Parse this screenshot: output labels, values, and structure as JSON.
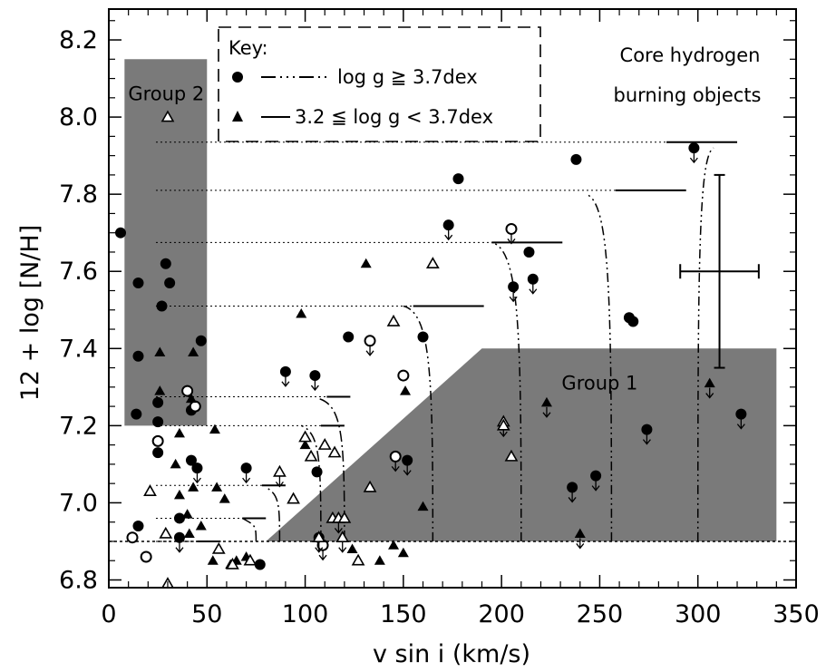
{
  "chart_data": {
    "type": "scatter",
    "xlabel": "v sin i (km/s)",
    "ylabel": "12 + log [N/H]",
    "xlim": [
      0,
      350
    ],
    "ylim": [
      6.78,
      8.28
    ],
    "xticks": [
      0,
      50,
      100,
      150,
      200,
      250,
      300,
      350
    ],
    "yticks": [
      6.8,
      7.0,
      7.2,
      7.4,
      7.6,
      7.8,
      8.0,
      8.2
    ],
    "annotation": [
      "Core hydrogen",
      "burning objects"
    ],
    "regions": [
      {
        "label": "Group 2",
        "polygon": [
          [
            8,
            7.2
          ],
          [
            8,
            8.15
          ],
          [
            50,
            8.15
          ],
          [
            50,
            7.2
          ]
        ]
      },
      {
        "label": "Group 1",
        "polygon": [
          [
            80,
            6.9
          ],
          [
            190,
            7.4
          ],
          [
            340,
            7.4
          ],
          [
            340,
            6.9
          ]
        ]
      }
    ],
    "legend": {
      "title": "Key:",
      "entries": [
        {
          "marker": "circle",
          "line": "dash-dot-dot-dot",
          "label": "log g ≧ 3.7dex"
        },
        {
          "marker": "triangle",
          "line": "solid",
          "label": "3.2 ≦ log g < 3.7dex"
        }
      ]
    },
    "error_bar": {
      "x": 311,
      "y": 7.6,
      "xerr": 20,
      "yerr_low": 0.25,
      "yerr_high": 0.25
    },
    "baseline": 6.9,
    "tracks": [
      {
        "x_end": 191,
        "y": 7.51,
        "y_end": 7.51
      },
      {
        "x_end": 231,
        "y": 7.675,
        "y_end": 7.675
      },
      {
        "x_end": 294,
        "y": 7.81,
        "y_end": 7.81
      },
      {
        "x_end": 320,
        "y": 7.935,
        "y_end": 7.935
      },
      {
        "x_end": 123,
        "y": 7.275,
        "y_end": 7.275
      },
      {
        "x_end": 120,
        "y": 7.2,
        "y_end": 7.2
      },
      {
        "x_end": 90,
        "y": 7.045,
        "y_end": 7.045
      },
      {
        "x_end": 80,
        "y": 6.96,
        "y_end": 6.96
      },
      {
        "x_end": 57,
        "y": 6.9,
        "y_end": 6.9
      }
    ],
    "curves": [
      {
        "x_base": 165,
        "x_top": 150,
        "y_top": 7.51
      },
      {
        "x_base": 210,
        "x_top": 195,
        "y_top": 7.675
      },
      {
        "x_base": 256,
        "x_top": 243,
        "y_top": 7.8
      },
      {
        "x_base": 300,
        "x_top": 308,
        "y_top": 7.92
      },
      {
        "x_base": 120,
        "x_top": 107,
        "y_top": 7.27
      },
      {
        "x_base": 108,
        "x_top": 98,
        "y_top": 7.2
      },
      {
        "x_base": 87,
        "x_top": 80,
        "y_top": 7.04
      },
      {
        "x_base": 75,
        "x_top": 68,
        "y_top": 6.96
      }
    ],
    "series": [
      {
        "marker": "circle-filled",
        "points": [
          [
            6,
            7.7,
            0
          ],
          [
            15,
            7.57,
            0
          ],
          [
            15,
            7.38,
            0
          ],
          [
            14,
            7.23,
            0
          ],
          [
            25,
            7.26,
            0
          ],
          [
            25,
            7.21,
            0
          ],
          [
            25,
            7.13,
            0
          ],
          [
            27,
            7.51,
            0
          ],
          [
            29,
            7.62,
            0
          ],
          [
            31,
            7.57,
            0
          ],
          [
            47,
            7.42,
            0
          ],
          [
            42,
            7.24,
            0
          ],
          [
            42,
            7.11,
            0
          ],
          [
            36,
            6.96,
            0
          ],
          [
            15,
            6.94,
            0
          ],
          [
            45,
            7.09,
            1
          ],
          [
            36,
            6.91,
            1
          ],
          [
            70,
            7.09,
            1
          ],
          [
            77,
            6.84,
            0
          ],
          [
            90,
            7.34,
            1
          ],
          [
            105,
            7.33,
            1
          ],
          [
            106,
            7.08,
            0
          ],
          [
            107,
            6.91,
            0
          ],
          [
            122,
            7.43,
            0
          ],
          [
            152,
            7.11,
            1
          ],
          [
            160,
            7.43,
            0
          ],
          [
            173,
            7.72,
            1
          ],
          [
            178,
            7.84,
            0
          ],
          [
            206,
            7.56,
            1
          ],
          [
            214,
            7.65,
            0
          ],
          [
            216,
            7.58,
            1
          ],
          [
            238,
            7.89,
            0
          ],
          [
            236,
            7.04,
            1
          ],
          [
            248,
            7.07,
            1
          ],
          [
            265,
            7.48,
            0
          ],
          [
            267,
            7.47,
            0
          ],
          [
            274,
            7.19,
            1
          ],
          [
            298,
            7.92,
            1
          ],
          [
            322,
            7.23,
            1
          ]
        ]
      },
      {
        "marker": "circle-open",
        "points": [
          [
            12,
            6.91,
            0
          ],
          [
            19,
            6.86,
            0
          ],
          [
            25,
            7.16,
            0
          ],
          [
            40,
            7.29,
            0
          ],
          [
            44,
            7.25,
            0
          ],
          [
            109,
            6.89,
            1
          ],
          [
            133,
            7.42,
            1
          ],
          [
            146,
            7.12,
            1
          ],
          [
            150,
            7.33,
            0
          ],
          [
            205,
            7.71,
            1
          ]
        ]
      },
      {
        "marker": "triangle-filled",
        "points": [
          [
            26,
            7.39,
            0
          ],
          [
            26,
            7.29,
            0
          ],
          [
            43,
            7.39,
            0
          ],
          [
            42,
            7.27,
            0
          ],
          [
            36,
            7.18,
            0
          ],
          [
            34,
            7.1,
            0
          ],
          [
            36,
            7.02,
            0
          ],
          [
            43,
            7.04,
            0
          ],
          [
            40,
            6.97,
            0
          ],
          [
            47,
            6.94,
            0
          ],
          [
            41,
            6.92,
            0
          ],
          [
            54,
            7.19,
            0
          ],
          [
            55,
            7.04,
            0
          ],
          [
            59,
            7.01,
            0
          ],
          [
            53,
            6.85,
            0
          ],
          [
            62,
            6.84,
            0
          ],
          [
            65,
            6.85,
            0
          ],
          [
            70,
            6.86,
            0
          ],
          [
            98,
            7.49,
            0
          ],
          [
            100,
            7.15,
            0
          ],
          [
            131,
            7.62,
            0
          ],
          [
            151,
            7.29,
            0
          ],
          [
            145,
            6.89,
            0
          ],
          [
            150,
            6.87,
            0
          ],
          [
            160,
            6.99,
            0
          ],
          [
            223,
            7.26,
            1
          ],
          [
            240,
            6.92,
            1
          ],
          [
            306,
            7.31,
            1
          ],
          [
            124,
            6.88,
            0
          ],
          [
            138,
            6.85,
            0
          ]
        ]
      },
      {
        "marker": "triangle-open",
        "points": [
          [
            30,
            8.0,
            0
          ],
          [
            21,
            7.03,
            0
          ],
          [
            29,
            6.92,
            0
          ],
          [
            30,
            6.79,
            0
          ],
          [
            56,
            6.88,
            0
          ],
          [
            63,
            6.84,
            0
          ],
          [
            72,
            6.85,
            0
          ],
          [
            87,
            7.08,
            1
          ],
          [
            94,
            7.01,
            0
          ],
          [
            100,
            7.17,
            0
          ],
          [
            103,
            7.12,
            0
          ],
          [
            110,
            7.15,
            0
          ],
          [
            114,
            6.96,
            0
          ],
          [
            117,
            6.96,
            1
          ],
          [
            120,
            6.96,
            0
          ],
          [
            119,
            6.91,
            1
          ],
          [
            107,
            6.91,
            1
          ],
          [
            127,
            6.85,
            0
          ],
          [
            133,
            7.04,
            0
          ],
          [
            145,
            7.47,
            0
          ],
          [
            165,
            7.62,
            0
          ],
          [
            201,
            7.21,
            1
          ],
          [
            201,
            7.2,
            0
          ],
          [
            205,
            7.12,
            0
          ],
          [
            115,
            7.13,
            0
          ]
        ]
      }
    ]
  }
}
